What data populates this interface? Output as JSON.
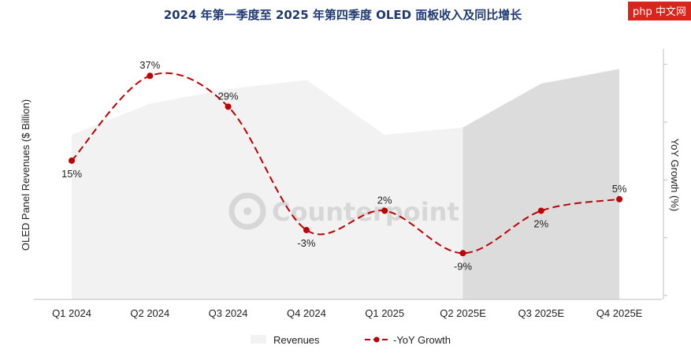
{
  "title": "2024 年第一季度至 2025 年第四季度 OLED 面板收入及同比增长",
  "watermark": "Counterpoint",
  "brand_logo": "php 中文网",
  "chart_data": {
    "type": "area+line",
    "categories": [
      "Q1 2024",
      "Q2 2024",
      "Q3 2024",
      "Q4 2024",
      "Q1 2025",
      "Q2 2025E",
      "Q3 2025E",
      "Q4 2025E"
    ],
    "ylabel_left": "OLED Panel Revenues ($ Billion)",
    "ylabel_right": "YoY Growth (%)",
    "forecast_start_index": 5,
    "series": [
      {
        "name": "Revenues",
        "kind": "area",
        "values": [
          9.0,
          10.7,
          11.5,
          12.0,
          9.0,
          9.4,
          11.8,
          12.6
        ]
      },
      {
        "name": "-YoY Growth",
        "kind": "line",
        "values": [
          15,
          37,
          29,
          -3,
          2,
          -9,
          2,
          5
        ]
      }
    ],
    "data_labels": [
      "15%",
      "37%",
      "29%",
      "-3%",
      "2%",
      "-9%",
      "2%",
      "5%"
    ],
    "left_axis_range": [
      0,
      13.7
    ],
    "right_axis_range": [
      -21,
      44
    ],
    "colors": {
      "revenue_area": "#f2f2f2",
      "forecast_area": "#dcdcdc",
      "yoy_line": "#c00000",
      "title": "#1f3a73",
      "brand_bg": "#d9251c"
    },
    "legend_position": "bottom-center"
  }
}
